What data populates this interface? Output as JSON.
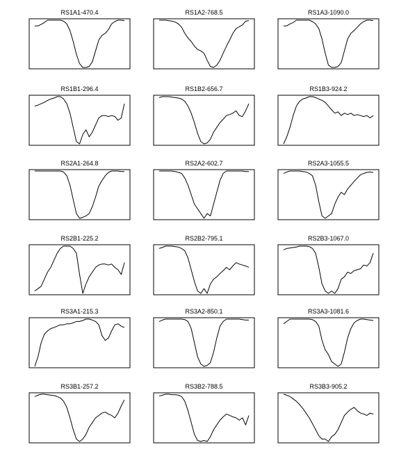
{
  "chart_data": [
    {
      "type": "line",
      "title": "RS1A1-470.4",
      "y": [
        0.88,
        0.88,
        0.91,
        0.95,
        1.0,
        1.0,
        1.0,
        1.0,
        1.0,
        0.98,
        0.92,
        0.78,
        0.55,
        0.28,
        0.08,
        0.0,
        0.0,
        0.02,
        0.12,
        0.35,
        0.58,
        0.68,
        0.72,
        0.8,
        0.92,
        0.97,
        1.0,
        1.0,
        0.99
      ]
    },
    {
      "type": "line",
      "title": "RS1A2-768.5",
      "y": [
        1.0,
        1.0,
        1.0,
        0.99,
        0.98,
        0.96,
        0.92,
        0.85,
        0.72,
        0.62,
        0.55,
        0.45,
        0.38,
        0.35,
        0.3,
        0.15,
        0.02,
        0.0,
        0.05,
        0.15,
        0.3,
        0.45,
        0.58,
        0.72,
        0.82,
        0.86,
        0.9,
        0.98,
        0.99
      ]
    },
    {
      "type": "line",
      "title": "RS1A3-1090.0",
      "y": [
        0.88,
        0.88,
        0.92,
        0.95,
        1.0,
        1.0,
        1.0,
        1.0,
        1.0,
        0.97,
        0.92,
        0.82,
        0.6,
        0.3,
        0.05,
        0.0,
        0.0,
        0.02,
        0.1,
        0.35,
        0.6,
        0.72,
        0.78,
        0.85,
        0.92,
        0.97,
        1.0,
        1.0,
        0.99
      ]
    },
    {
      "type": "line",
      "title": "RS1B1-296.4",
      "y": [
        0.8,
        0.82,
        0.85,
        0.88,
        0.92,
        0.95,
        0.97,
        1.0,
        1.0,
        0.95,
        0.85,
        0.65,
        0.35,
        0.05,
        0.0,
        0.2,
        0.3,
        0.15,
        0.25,
        0.4,
        0.55,
        0.6,
        0.6,
        0.58,
        0.6,
        0.58,
        0.5,
        0.55,
        0.85
      ]
    },
    {
      "type": "line",
      "title": "RS1B2-656.7",
      "y": [
        0.98,
        1.0,
        1.0,
        1.0,
        0.99,
        0.98,
        0.97,
        0.95,
        0.9,
        0.8,
        0.65,
        0.45,
        0.22,
        0.05,
        0.0,
        0.02,
        0.1,
        0.25,
        0.35,
        0.45,
        0.52,
        0.6,
        0.62,
        0.65,
        0.7,
        0.6,
        0.58,
        0.7,
        0.85
      ]
    },
    {
      "type": "line",
      "title": "RS1B3-924.2",
      "y": [
        0.0,
        0.15,
        0.35,
        0.6,
        0.8,
        0.9,
        0.95,
        0.97,
        1.0,
        1.0,
        0.98,
        0.95,
        0.92,
        0.88,
        0.8,
        0.72,
        0.65,
        0.68,
        0.6,
        0.65,
        0.62,
        0.65,
        0.6,
        0.62,
        0.6,
        0.58,
        0.6,
        0.55,
        0.6
      ]
    },
    {
      "type": "line",
      "title": "RS2A1-264.8",
      "y": [
        1.0,
        1.0,
        1.0,
        1.0,
        1.0,
        1.0,
        1.0,
        1.0,
        1.0,
        0.98,
        0.9,
        0.7,
        0.4,
        0.1,
        0.0,
        0.02,
        0.05,
        0.1,
        0.25,
        0.45,
        0.68,
        0.8,
        0.9,
        0.97,
        1.0,
        1.0,
        1.0,
        0.99,
        0.99
      ]
    },
    {
      "type": "line",
      "title": "RS2A2-602.7",
      "y": [
        1.0,
        1.0,
        1.0,
        1.0,
        1.0,
        0.99,
        0.97,
        0.95,
        0.85,
        0.7,
        0.5,
        0.3,
        0.2,
        0.1,
        0.0,
        0.1,
        0.05,
        0.3,
        0.55,
        0.8,
        0.95,
        1.0,
        1.0,
        1.0,
        1.0,
        1.0,
        1.0,
        0.99,
        0.99
      ]
    },
    {
      "type": "line",
      "title": "RS2A3-1055.5",
      "y": [
        0.95,
        0.98,
        1.0,
        1.0,
        1.0,
        1.0,
        0.99,
        0.98,
        0.95,
        0.9,
        0.7,
        0.35,
        0.05,
        0.0,
        0.05,
        0.1,
        0.3,
        0.45,
        0.55,
        0.5,
        0.62,
        0.7,
        0.78,
        0.85,
        0.92,
        0.95,
        0.97,
        0.98,
        0.97
      ]
    },
    {
      "type": "line",
      "title": "RS2B1-225.2",
      "y": [
        0.05,
        0.1,
        0.15,
        0.3,
        0.45,
        0.55,
        0.7,
        0.85,
        0.95,
        1.0,
        1.0,
        1.0,
        0.95,
        0.85,
        0.4,
        0.0,
        0.2,
        0.35,
        0.45,
        0.55,
        0.6,
        0.62,
        0.62,
        0.6,
        0.62,
        0.55,
        0.5,
        0.4,
        0.65
      ]
    },
    {
      "type": "line",
      "title": "RS2B2-795.1",
      "y": [
        0.95,
        0.97,
        1.0,
        1.0,
        1.0,
        0.99,
        0.98,
        0.95,
        0.9,
        0.75,
        0.5,
        0.25,
        0.05,
        0.0,
        0.1,
        0.0,
        0.2,
        0.3,
        0.35,
        0.42,
        0.48,
        0.55,
        0.5,
        0.58,
        0.65,
        0.62,
        0.6,
        0.58,
        0.55
      ]
    },
    {
      "type": "line",
      "title": "RS2B3-1067.0",
      "y": [
        0.92,
        0.95,
        0.96,
        0.97,
        0.98,
        1.0,
        1.0,
        1.0,
        0.99,
        0.95,
        0.85,
        0.55,
        0.2,
        0.05,
        0.0,
        0.05,
        0.0,
        0.1,
        0.3,
        0.35,
        0.45,
        0.42,
        0.48,
        0.5,
        0.52,
        0.6,
        0.58,
        0.65,
        0.85
      ]
    },
    {
      "type": "line",
      "title": "RS3A1-215.3",
      "y": [
        0.0,
        0.2,
        0.5,
        0.68,
        0.75,
        0.8,
        0.82,
        0.85,
        0.88,
        0.88,
        0.9,
        0.9,
        0.92,
        0.95,
        0.95,
        0.97,
        1.0,
        1.0,
        0.98,
        0.95,
        0.88,
        0.65,
        0.55,
        0.6,
        0.75,
        0.88,
        0.9,
        0.85,
        0.82
      ]
    },
    {
      "type": "line",
      "title": "RS3A2-850.1",
      "y": [
        0.95,
        0.98,
        1.0,
        1.0,
        1.0,
        1.0,
        1.0,
        1.0,
        0.99,
        0.95,
        0.8,
        0.5,
        0.2,
        0.05,
        0.0,
        0.02,
        0.08,
        0.3,
        0.6,
        0.85,
        0.95,
        1.0,
        1.0,
        1.0,
        1.0,
        1.0,
        0.99,
        0.98,
        0.98
      ]
    },
    {
      "type": "line",
      "title": "RS3A3-1081.6",
      "y": [
        0.9,
        0.95,
        1.0,
        1.0,
        1.0,
        1.0,
        1.0,
        1.0,
        1.0,
        0.99,
        0.95,
        0.85,
        0.55,
        0.35,
        0.25,
        0.1,
        0.05,
        0.0,
        0.05,
        0.3,
        0.6,
        0.8,
        0.92,
        0.97,
        1.0,
        1.0,
        0.99,
        0.98,
        0.97
      ]
    },
    {
      "type": "line",
      "title": "RS3B1-257.2",
      "y": [
        0.95,
        0.98,
        1.0,
        1.0,
        0.99,
        0.98,
        0.97,
        0.95,
        0.92,
        0.85,
        0.72,
        0.5,
        0.25,
        0.05,
        0.0,
        0.05,
        0.15,
        0.3,
        0.4,
        0.5,
        0.55,
        0.6,
        0.62,
        0.58,
        0.55,
        0.5,
        0.6,
        0.75,
        0.88
      ]
    },
    {
      "type": "line",
      "title": "RS3B2-788.5",
      "y": [
        0.96,
        0.98,
        1.0,
        1.0,
        0.99,
        0.99,
        0.98,
        0.95,
        0.85,
        0.65,
        0.4,
        0.15,
        0.02,
        0.0,
        0.02,
        0.0,
        0.1,
        0.25,
        0.35,
        0.45,
        0.52,
        0.58,
        0.55,
        0.52,
        0.5,
        0.45,
        0.5,
        0.35,
        0.55
      ]
    },
    {
      "type": "line",
      "title": "RS3B3-905.2",
      "y": [
        1.0,
        0.98,
        0.95,
        0.9,
        0.85,
        0.78,
        0.7,
        0.6,
        0.5,
        0.38,
        0.25,
        0.12,
        0.05,
        0.05,
        0.0,
        0.1,
        0.15,
        0.25,
        0.4,
        0.55,
        0.62,
        0.68,
        0.72,
        0.65,
        0.6,
        0.58,
        0.55,
        0.6,
        0.58
      ]
    }
  ]
}
